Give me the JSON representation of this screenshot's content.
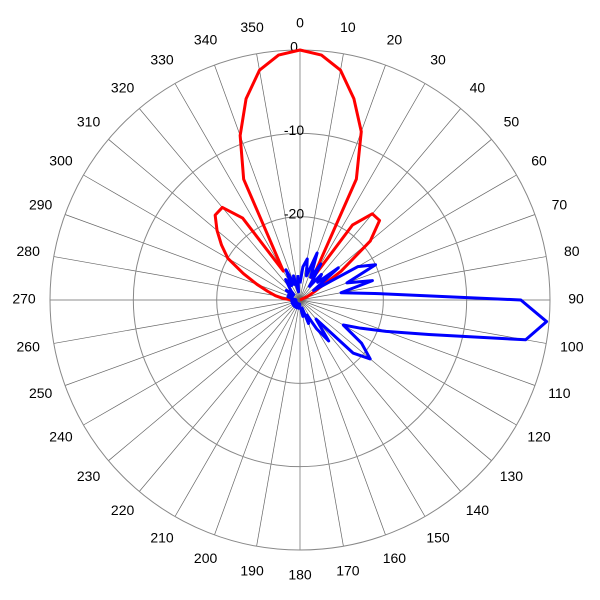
{
  "chart_data": {
    "type": "polar",
    "rlim": [
      -30,
      0
    ],
    "rticks": [
      -20,
      -10,
      0
    ],
    "thetaticks": [
      0,
      10,
      20,
      30,
      40,
      50,
      60,
      70,
      80,
      90,
      100,
      110,
      120,
      130,
      140,
      150,
      160,
      170,
      180,
      190,
      200,
      210,
      220,
      230,
      240,
      250,
      260,
      270,
      280,
      290,
      300,
      310,
      320,
      330,
      340,
      350
    ],
    "grid": true,
    "series": [
      {
        "color": "#ff0000",
        "theta": [
          270,
          275,
          280,
          285,
          290,
          295,
          300,
          305,
          310,
          315,
          320,
          325,
          330,
          335,
          340,
          345,
          350,
          355,
          0,
          5,
          10,
          15,
          20,
          25,
          30,
          35,
          40,
          45,
          50,
          55,
          60,
          65,
          70,
          75,
          80,
          85,
          90
        ],
        "values": [
          -29,
          -28,
          -27,
          -26,
          -24.5,
          -22.5,
          -20,
          -18.5,
          -17,
          -15.6,
          -15.5,
          -18,
          -26,
          -14,
          -9,
          -5,
          -2,
          -0.5,
          0,
          -0.5,
          -2,
          -5,
          -8.5,
          -14,
          -27,
          -19,
          -16.5,
          -16.5,
          -19,
          -24,
          -28,
          -29,
          -30,
          -30,
          -30,
          -30,
          -30
        ]
      },
      {
        "color": "#0000ff",
        "theta": [
          0,
          5,
          10,
          15,
          20,
          25,
          30,
          35,
          40,
          45,
          50,
          55,
          60,
          65,
          70,
          75,
          80,
          85,
          90,
          95,
          100,
          105,
          110,
          115,
          120,
          125,
          130,
          135,
          140,
          145,
          150,
          155,
          160,
          165,
          170,
          175,
          180,
          185,
          190,
          195,
          200,
          205,
          210,
          215,
          220,
          225,
          230,
          235,
          240,
          245,
          250,
          255,
          260,
          265,
          270,
          275,
          280,
          285,
          290,
          295,
          300,
          305,
          310,
          315,
          320,
          325,
          330,
          335,
          340,
          345,
          350,
          355
        ],
        "values": [
          -28,
          -26,
          -25,
          -27,
          -24,
          -27,
          -25,
          -28,
          -26,
          -27,
          -24,
          -28,
          -22,
          -20,
          -24,
          -21,
          -25,
          -21,
          -3.5,
          -0.3,
          -2.5,
          -14,
          -19,
          -22,
          -24,
          -21,
          -19,
          -21,
          -27,
          -24,
          -26,
          -28,
          -27,
          -29,
          -28,
          -29,
          -29,
          -29.5,
          -29,
          -29.5,
          -29,
          -29.5,
          -29,
          -29.5,
          -29,
          -29.5,
          -29,
          -29.5,
          -29,
          -29.5,
          -29,
          -29.5,
          -29,
          -29.5,
          -29,
          -29.5,
          -29,
          -28.5,
          -29,
          -28.5,
          -29,
          -28,
          -29,
          -28.5,
          -28,
          -27,
          -28,
          -26,
          -28,
          -27,
          -29,
          -27
        ]
      }
    ]
  }
}
